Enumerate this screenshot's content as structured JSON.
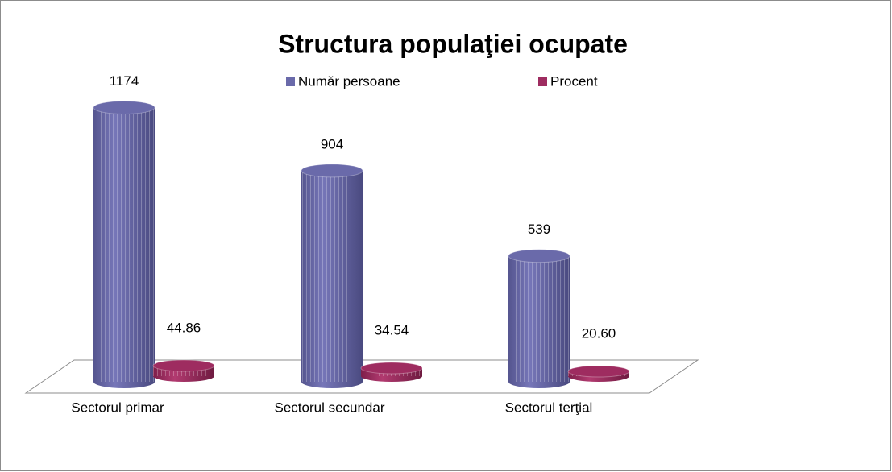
{
  "chart_data": {
    "type": "bar",
    "title": "Structura populaţiei ocupate",
    "categories": [
      "Sectorul primar",
      "Sectorul secundar",
      "Sectorul terţial"
    ],
    "series": [
      {
        "name": "Număr persoane",
        "color": "#6a6aaa",
        "values": [
          1174,
          904,
          539
        ]
      },
      {
        "name": "Procent",
        "color": "#9e2c60",
        "values": [
          44.86,
          34.54,
          20.6
        ],
        "value_labels": [
          "44.86",
          "34.54",
          "20.60"
        ]
      }
    ]
  }
}
